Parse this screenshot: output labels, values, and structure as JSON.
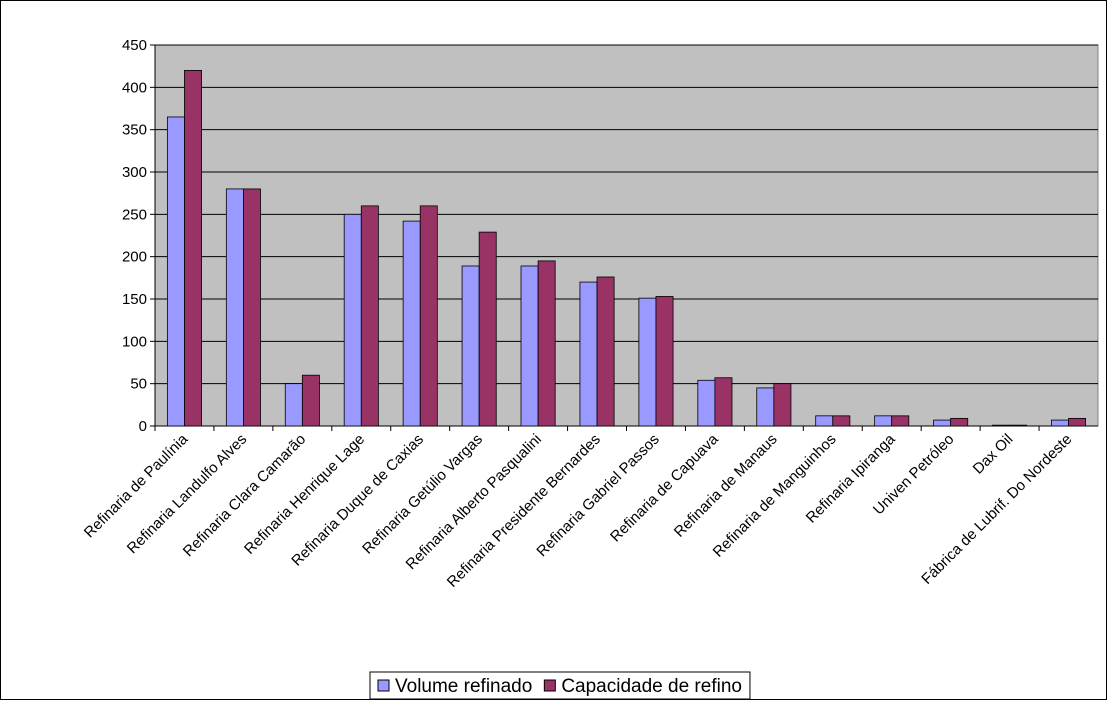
{
  "chart_data": {
    "type": "bar",
    "categories": [
      "Refinaria de Paulínia",
      "Refinaria Landulfo Alves",
      "Refinaria Clara Camarão",
      "Refinaria Henrique Lage",
      "Refinaria Duque de Caxias",
      "Refinaria Getúlio Vargas",
      "Refinaria Alberto Pasqualini",
      "Refinaria Presidente Bernardes",
      "Refinaria Gabriel Passos",
      "Refinaria de Capuava",
      "Refinaria de Manaus",
      "Refinaria de Manguinhos",
      "Refinaria Ipiranga",
      "Univen Petróleo",
      "Dax Oil",
      "Fábrica de Lubrif. Do Nordeste"
    ],
    "series": [
      {
        "name": "Volume refinado",
        "color": "#9999ff",
        "values": [
          365,
          280,
          50,
          250,
          242,
          189,
          189,
          170,
          151,
          54,
          45,
          12,
          12,
          7,
          1,
          7
        ]
      },
      {
        "name": "Capacidade de refino",
        "color": "#993366",
        "values": [
          420,
          280,
          60,
          260,
          260,
          229,
          195,
          176,
          153,
          57,
          50,
          12,
          12,
          9,
          1,
          9
        ]
      }
    ],
    "ylim": [
      0,
      450
    ],
    "yticks": [
      0,
      50,
      100,
      150,
      200,
      250,
      300,
      350,
      400,
      450
    ],
    "grid": true,
    "legend": "bottom"
  }
}
